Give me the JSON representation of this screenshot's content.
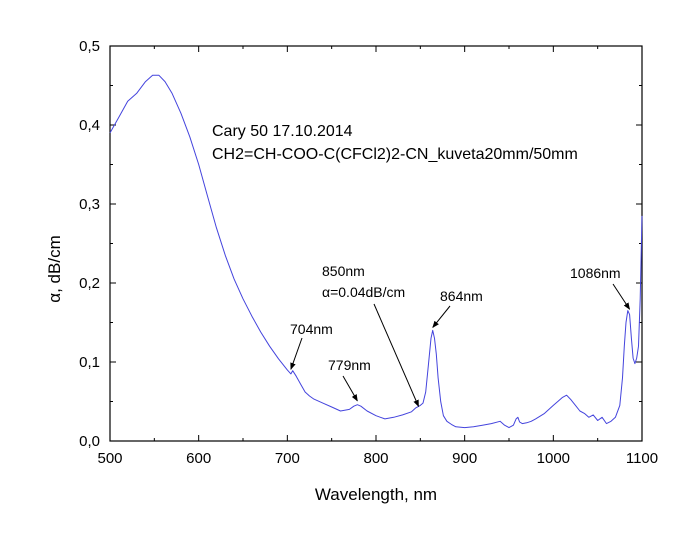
{
  "chart_data": {
    "type": "line",
    "title": "",
    "xlabel": "Wavelength, nm",
    "ylabel": "α, dB/cm",
    "xlim": [
      500,
      1100
    ],
    "ylim": [
      0.0,
      0.5
    ],
    "xticks": [
      500,
      600,
      700,
      800,
      900,
      1000,
      1100
    ],
    "xtick_labels": [
      "500",
      "600",
      "700",
      "800",
      "900",
      "1000",
      "1100"
    ],
    "yticks": [
      0.0,
      0.1,
      0.2,
      0.3,
      0.4,
      0.5
    ],
    "ytick_labels": [
      "0,0",
      "0,1",
      "0,2",
      "0,3",
      "0,4",
      "0,5"
    ],
    "grid": false,
    "legend": null,
    "series": [
      {
        "name": "CH2=CH-COO-C(CFCl2)2-CN",
        "color": "#4444dd",
        "x": [
          500,
          510,
          520,
          530,
          540,
          548,
          555,
          562,
          570,
          580,
          590,
          600,
          610,
          620,
          630,
          640,
          650,
          660,
          670,
          680,
          690,
          700,
          704,
          706,
          710,
          715,
          720,
          725,
          730,
          740,
          750,
          760,
          770,
          775,
          779,
          783,
          790,
          800,
          810,
          820,
          830,
          840,
          845,
          850,
          853,
          856,
          859,
          862,
          864,
          866,
          868,
          870,
          873,
          876,
          880,
          885,
          890,
          900,
          910,
          920,
          930,
          940,
          945,
          950,
          955,
          958,
          960,
          962,
          965,
          970,
          975,
          980,
          990,
          1000,
          1005,
          1010,
          1015,
          1020,
          1025,
          1030,
          1035,
          1040,
          1045,
          1050,
          1055,
          1060,
          1065,
          1070,
          1075,
          1078,
          1080,
          1082,
          1084,
          1086,
          1088,
          1090,
          1092,
          1094,
          1096,
          1098,
          1100
        ],
        "y": [
          0.39,
          0.41,
          0.43,
          0.44,
          0.455,
          0.463,
          0.463,
          0.455,
          0.44,
          0.415,
          0.385,
          0.35,
          0.31,
          0.27,
          0.235,
          0.205,
          0.18,
          0.158,
          0.138,
          0.12,
          0.104,
          0.09,
          0.085,
          0.089,
          0.082,
          0.072,
          0.062,
          0.057,
          0.053,
          0.048,
          0.043,
          0.038,
          0.04,
          0.044,
          0.046,
          0.044,
          0.038,
          0.032,
          0.028,
          0.03,
          0.033,
          0.037,
          0.042,
          0.045,
          0.048,
          0.062,
          0.095,
          0.13,
          0.14,
          0.13,
          0.11,
          0.08,
          0.05,
          0.032,
          0.025,
          0.021,
          0.018,
          0.017,
          0.018,
          0.02,
          0.022,
          0.025,
          0.02,
          0.017,
          0.02,
          0.028,
          0.03,
          0.024,
          0.022,
          0.023,
          0.025,
          0.028,
          0.035,
          0.045,
          0.05,
          0.055,
          0.058,
          0.052,
          0.045,
          0.038,
          0.035,
          0.03,
          0.033,
          0.026,
          0.03,
          0.022,
          0.025,
          0.03,
          0.045,
          0.08,
          0.12,
          0.15,
          0.165,
          0.16,
          0.13,
          0.105,
          0.098,
          0.105,
          0.12,
          0.18,
          0.285
        ]
      }
    ],
    "annotations": [
      {
        "text": "704nm",
        "x": 704,
        "y": 0.087
      },
      {
        "text": "779nm",
        "x": 779,
        "y": 0.047
      },
      {
        "text": "850nm",
        "x": 848,
        "y": 0.04
      },
      {
        "text": "α=0.04dB/cm",
        "x": 848,
        "y": 0.04
      },
      {
        "text": "864nm",
        "x": 864,
        "y": 0.14
      },
      {
        "text": "1086nm",
        "x": 1086,
        "y": 0.163
      }
    ],
    "note_lines": [
      "Cary 50 17.10.2014",
      "CH2=CH-COO-C(CFCl2)2-CN_kuveta20mm/50mm"
    ]
  }
}
